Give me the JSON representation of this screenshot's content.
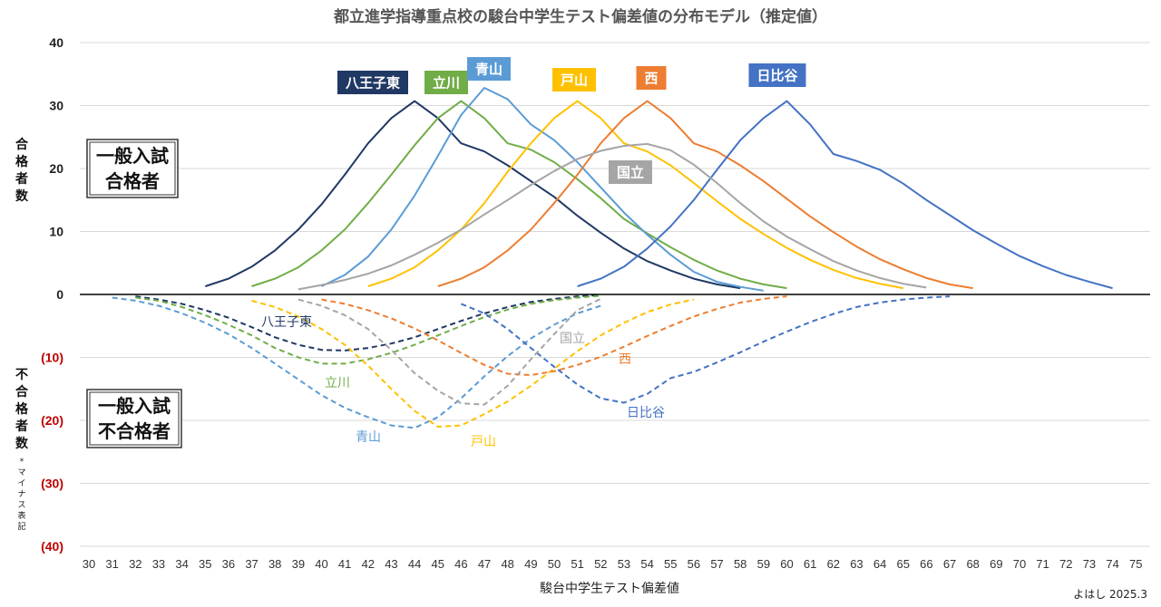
{
  "title": "都立進学指導重点校の駿台中学生テスト偏差値の分布モデル（推定値）",
  "credit": "よはし 2025.3",
  "y_axis_top_label": "合格者数",
  "y_axis_bottom_label": "不合格者数",
  "y_axis_bottom_note": "*マイナス表記",
  "box_pass": [
    "一般入試",
    "合格者"
  ],
  "box_fail": [
    "一般入試",
    "不合格者"
  ],
  "colors": {
    "hachioji": "#203864",
    "tachikawa": "#70ad47",
    "aoyama": "#5b9bd5",
    "toyama": "#ffc000",
    "nishi": "#ed7d31",
    "hibiya": "#4472c4",
    "kunitachi": "#a5a5a5",
    "negative_tick": "#c00000"
  },
  "chart_data": {
    "type": "line",
    "title": "都立進学指導重点校の駿台中学生テスト偏差値の分布モデル（推定値）",
    "xlabel": "駿台中学生テスト偏差値",
    "ylabel": "合格者数 / 不合格者数",
    "xlim": [
      30,
      75
    ],
    "ylim": [
      -40,
      40
    ],
    "y_ticks": [
      40,
      30,
      20,
      10,
      0,
      -10,
      -20,
      -30,
      -40
    ],
    "y_tick_labels": [
      "40",
      "30",
      "20",
      "10",
      "0",
      "(10)",
      "(20)",
      "(30)",
      "(40)"
    ],
    "x_ticks": [
      30,
      31,
      32,
      33,
      34,
      35,
      36,
      37,
      38,
      39,
      40,
      41,
      42,
      43,
      44,
      45,
      46,
      47,
      48,
      49,
      50,
      51,
      52,
      53,
      54,
      55,
      56,
      57,
      58,
      59,
      60,
      61,
      62,
      63,
      64,
      65,
      66,
      67,
      68,
      69,
      70,
      71,
      72,
      73,
      74,
      75
    ],
    "grid": "horizontal",
    "series": [
      {
        "name": "八王子東",
        "color_key": "hachioji",
        "kind": "pass",
        "x": [
          35,
          36,
          37,
          38,
          39,
          40,
          41,
          42,
          43,
          44,
          45,
          46,
          47,
          48,
          49,
          50,
          51,
          52,
          53,
          54,
          55,
          56,
          57,
          58
        ],
        "y": [
          1.3,
          2.5,
          4.4,
          7,
          10.3,
          14.3,
          19,
          24,
          28,
          30.7,
          28,
          24,
          22.7,
          20.5,
          18,
          15.5,
          12.5,
          9.8,
          7.3,
          5.3,
          3.8,
          2.5,
          1.6,
          1.0
        ]
      },
      {
        "name": "立川",
        "color_key": "tachikawa",
        "kind": "pass",
        "x": [
          37,
          38,
          39,
          40,
          41,
          42,
          43,
          44,
          45,
          46,
          47,
          48,
          49,
          50,
          51,
          52,
          53,
          54,
          55,
          56,
          57,
          58,
          59,
          60
        ],
        "y": [
          1.3,
          2.5,
          4.3,
          7,
          10.3,
          14.5,
          19,
          23.7,
          28,
          30.7,
          28,
          24,
          23,
          21,
          18.3,
          15.3,
          12,
          9.7,
          7.5,
          5.5,
          3.8,
          2.5,
          1.6,
          1.0
        ]
      },
      {
        "name": "青山",
        "color_key": "aoyama",
        "kind": "pass",
        "x": [
          40,
          41,
          42,
          43,
          44,
          45,
          46,
          47,
          48,
          49,
          50,
          51,
          52,
          53,
          54,
          55,
          56,
          57,
          58,
          59
        ],
        "y": [
          1.3,
          3.1,
          6,
          10.3,
          15.7,
          22,
          28.5,
          32.8,
          31,
          27,
          24.5,
          21,
          17,
          13,
          9.5,
          6.3,
          3.6,
          2,
          1.2,
          0.6
        ]
      },
      {
        "name": "戸山",
        "color_key": "toyama",
        "kind": "pass",
        "x": [
          42,
          43,
          44,
          45,
          46,
          47,
          48,
          49,
          50,
          51,
          52,
          53,
          54,
          55,
          56,
          57,
          58,
          59,
          60,
          61,
          62,
          63,
          64,
          65
        ],
        "y": [
          1.3,
          2.5,
          4.3,
          7,
          10.3,
          14.5,
          19.5,
          24,
          28,
          30.7,
          28,
          24,
          22.7,
          20.5,
          17.7,
          14.8,
          12,
          9.6,
          7.4,
          5.5,
          3.9,
          2.6,
          1.7,
          1.0
        ]
      },
      {
        "name": "西",
        "color_key": "nishi",
        "kind": "pass",
        "x": [
          45,
          46,
          47,
          48,
          49,
          50,
          51,
          52,
          53,
          54,
          55,
          56,
          57,
          58,
          59,
          60,
          61,
          62,
          63,
          64,
          65,
          66,
          67,
          68
        ],
        "y": [
          1.3,
          2.5,
          4.3,
          7,
          10.3,
          14.5,
          19,
          24,
          28,
          30.7,
          28,
          24,
          22.7,
          20.5,
          18,
          15.2,
          12.4,
          9.9,
          7.6,
          5.6,
          4,
          2.6,
          1.6,
          1.0
        ]
      },
      {
        "name": "日比谷",
        "color_key": "hibiya",
        "kind": "pass",
        "x": [
          51,
          52,
          53,
          54,
          55,
          56,
          57,
          58,
          59,
          60,
          61,
          62,
          63,
          64,
          65,
          66,
          67,
          68,
          69,
          70,
          71,
          72,
          73,
          74
        ],
        "y": [
          1.3,
          2.5,
          4.4,
          7.3,
          10.8,
          15,
          19.8,
          24.5,
          28,
          30.7,
          27,
          22.3,
          21.2,
          19.8,
          17.6,
          15,
          12.6,
          10.2,
          8.1,
          6.1,
          4.5,
          3.1,
          2.0,
          1.0
        ]
      },
      {
        "name": "国立",
        "color_key": "kunitachi",
        "kind": "pass",
        "x": [
          39,
          40,
          41,
          42,
          43,
          44,
          45,
          46,
          47,
          48,
          49,
          50,
          51,
          52,
          53,
          54,
          55,
          56,
          57,
          58,
          59,
          60,
          61,
          62,
          63,
          64,
          65,
          66
        ],
        "y": [
          0.8,
          1.5,
          2.3,
          3.3,
          4.6,
          6.3,
          8.2,
          10.3,
          12.7,
          15,
          17.4,
          19.6,
          21.5,
          22.8,
          23.6,
          23.9,
          22.9,
          20.6,
          17.7,
          14.5,
          11.6,
          9.2,
          7.2,
          5.3,
          3.8,
          2.6,
          1.7,
          1.1
        ]
      },
      {
        "name": "八王子東",
        "color_key": "hachioji",
        "kind": "fail",
        "x": [
          32,
          33,
          34,
          35,
          36,
          37,
          38,
          39,
          40,
          41,
          42,
          43,
          44,
          45,
          46,
          47,
          48,
          49,
          50,
          51,
          52
        ],
        "y": [
          -0.3,
          -0.8,
          -1.5,
          -2.5,
          -3.7,
          -5.2,
          -6.8,
          -8,
          -8.8,
          -8.9,
          -8.5,
          -7.8,
          -6.8,
          -5.5,
          -4.2,
          -3,
          -2,
          -1.2,
          -0.7,
          -0.3,
          -0.1
        ]
      },
      {
        "name": "立川",
        "color_key": "tachikawa",
        "kind": "fail",
        "x": [
          32,
          33,
          34,
          35,
          36,
          37,
          38,
          39,
          40,
          41,
          42,
          43,
          44,
          45,
          46,
          47,
          48,
          49,
          50,
          51,
          52
        ],
        "y": [
          -0.5,
          -1,
          -2,
          -3.3,
          -4.8,
          -6.5,
          -8.5,
          -10,
          -11,
          -11,
          -10.3,
          -9.3,
          -8,
          -6.5,
          -5,
          -3.6,
          -2.4,
          -1.5,
          -0.9,
          -0.5,
          -0.2
        ]
      },
      {
        "name": "青山",
        "color_key": "aoyama",
        "kind": "fail",
        "x": [
          31,
          32,
          33,
          34,
          35,
          36,
          37,
          38,
          39,
          40,
          41,
          42,
          43,
          44,
          45,
          46,
          47,
          48,
          49,
          50,
          51,
          52
        ],
        "y": [
          -0.5,
          -1,
          -1.8,
          -3,
          -4.5,
          -6.3,
          -8.5,
          -11,
          -13.5,
          -16,
          -18,
          -19.5,
          -20.8,
          -21.2,
          -19.5,
          -16.5,
          -13,
          -9.8,
          -7,
          -4.8,
          -3,
          -1.8
        ]
      },
      {
        "name": "戸山",
        "color_key": "toyama",
        "kind": "fail",
        "x": [
          37,
          38,
          39,
          40,
          41,
          42,
          43,
          44,
          45,
          46,
          47,
          48,
          49,
          50,
          51,
          52,
          53,
          54,
          55,
          56
        ],
        "y": [
          -1,
          -2,
          -3.5,
          -5.5,
          -8,
          -11.3,
          -15,
          -18.5,
          -21,
          -20.8,
          -19,
          -17,
          -14.5,
          -11.8,
          -9,
          -6.5,
          -4.5,
          -2.8,
          -1.6,
          -0.8
        ]
      },
      {
        "name": "西",
        "color_key": "nishi",
        "kind": "fail",
        "x": [
          40,
          41,
          42,
          43,
          44,
          45,
          46,
          47,
          48,
          49,
          50,
          51,
          52,
          53,
          54,
          55,
          56,
          57,
          58,
          59,
          60
        ],
        "y": [
          -0.8,
          -1.5,
          -2.5,
          -3.8,
          -5.4,
          -7.3,
          -9.3,
          -11.2,
          -12.6,
          -12.8,
          -12.2,
          -11.2,
          -9.9,
          -8.3,
          -6.6,
          -5,
          -3.5,
          -2.3,
          -1.3,
          -0.7,
          -0.3
        ]
      },
      {
        "name": "日比谷",
        "color_key": "hibiya",
        "kind": "fail",
        "x": [
          46,
          47,
          48,
          49,
          50,
          51,
          52,
          53,
          54,
          55,
          56,
          57,
          58,
          59,
          60,
          61,
          62,
          63,
          64,
          65,
          66,
          67
        ],
        "y": [
          -1.5,
          -3,
          -5.5,
          -8.5,
          -11.5,
          -14.3,
          -16.5,
          -17.2,
          -15.8,
          -13.3,
          -12.3,
          -10.8,
          -9.2,
          -7.5,
          -5.9,
          -4.4,
          -3.1,
          -2,
          -1.3,
          -0.8,
          -0.5,
          -0.3
        ]
      },
      {
        "name": "国立",
        "color_key": "kunitachi",
        "kind": "fail",
        "x": [
          39,
          40,
          41,
          42,
          43,
          44,
          45,
          46,
          47,
          48,
          49,
          50,
          51,
          52
        ],
        "y": [
          -0.8,
          -1.8,
          -3.3,
          -5.5,
          -8.8,
          -12.5,
          -15.3,
          -17.3,
          -17.5,
          -14.5,
          -10.3,
          -6.3,
          -2.5,
          -0.7
        ]
      }
    ],
    "pass_labels": [
      {
        "text": "八王子東",
        "color_key": "hachioji"
      },
      {
        "text": "立川",
        "color_key": "tachikawa"
      },
      {
        "text": "青山",
        "color_key": "aoyama"
      },
      {
        "text": "戸山",
        "color_key": "toyama"
      },
      {
        "text": "西",
        "color_key": "nishi"
      },
      {
        "text": "日比谷",
        "color_key": "hibiya"
      },
      {
        "text": "国立",
        "color_key": "kunitachi"
      }
    ],
    "fail_labels": [
      {
        "text": "八王子東",
        "color_key": "hachioji"
      },
      {
        "text": "立川",
        "color_key": "tachikawa"
      },
      {
        "text": "青山",
        "color_key": "aoyama"
      },
      {
        "text": "戸山",
        "color_key": "toyama"
      },
      {
        "text": "国立",
        "color_key": "kunitachi"
      },
      {
        "text": "西",
        "color_key": "nishi"
      },
      {
        "text": "日比谷",
        "color_key": "hibiya"
      }
    ]
  }
}
